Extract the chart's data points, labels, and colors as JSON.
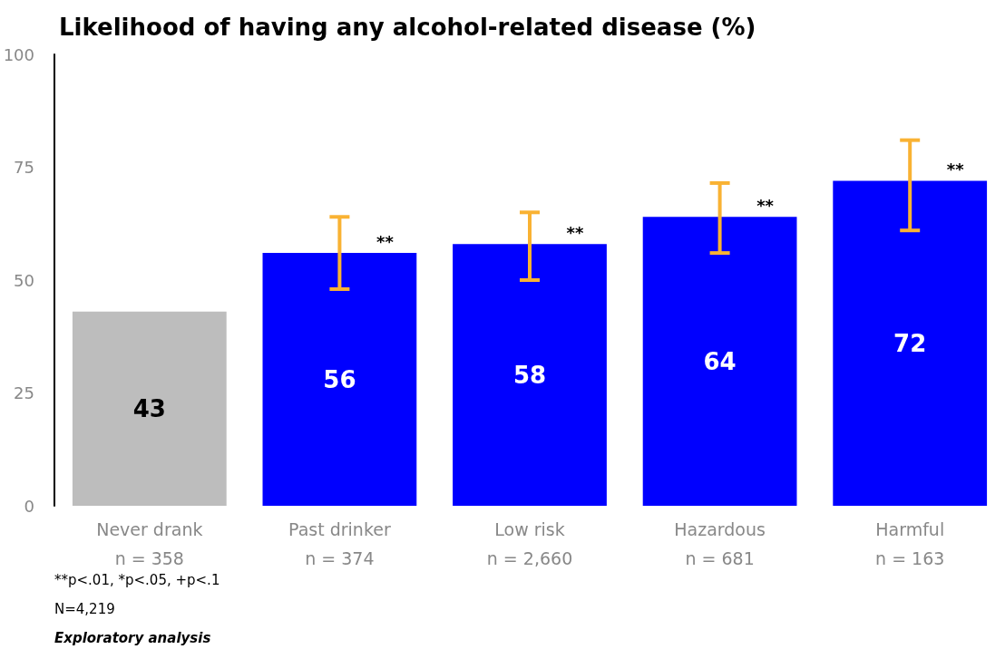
{
  "chart_data": {
    "type": "bar",
    "title": "Likelihood of having any alcohol-related disease (%)",
    "categories": [
      "Never drank\nn = 358",
      "Past drinker\nn = 374",
      "Low risk\nn = 2,660",
      "Hazardous\nn = 681",
      "Harmful\nn = 163"
    ],
    "values": [
      43,
      56,
      58,
      64,
      72
    ],
    "colors": [
      "#bdbdbd",
      "#0000ff",
      "#0000ff",
      "#0000ff",
      "#0000ff"
    ],
    "errors": [
      null,
      [
        48,
        64
      ],
      [
        50,
        65
      ],
      [
        56,
        71.5
      ],
      [
        61,
        81
      ]
    ],
    "ylim": [
      0,
      100
    ],
    "yticks": [
      0,
      25,
      50,
      75,
      100
    ],
    "grid": false,
    "data_labels": true,
    "annotations": [
      {
        "text": "**",
        "x": "Past drinker\nn = 374",
        "y": 56
      },
      {
        "text": "**",
        "x": "Low risk\nn = 2,660",
        "y": 58
      },
      {
        "text": "**",
        "x": "Hazardous\nn = 681",
        "y": 64
      },
      {
        "text": "**",
        "x": "Harmful\nn = 163",
        "y": 72
      },
      "**p<.01, *p<.05, +p<.1",
      "N=4,219",
      "Exploratory analysis"
    ]
  }
}
